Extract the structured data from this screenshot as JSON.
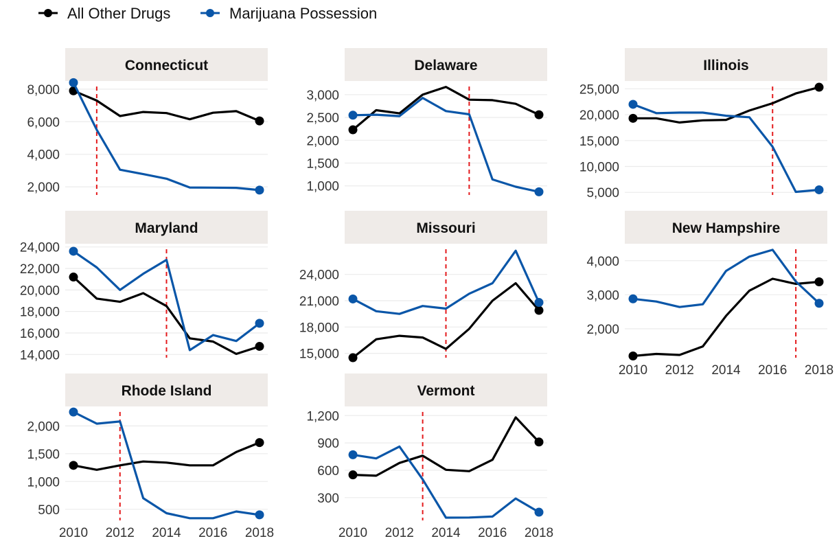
{
  "legend": [
    {
      "label": "All Other Drugs",
      "color": "#000000"
    },
    {
      "label": "Marijuana Possession",
      "color": "#0a56a8"
    }
  ],
  "chart_data": {
    "type": "line",
    "x_ticks": [
      2010,
      2012,
      2014,
      2016,
      2018
    ],
    "years": [
      2010,
      2011,
      2012,
      2013,
      2014,
      2015,
      2016,
      2017,
      2018
    ],
    "legend_position": "top-left",
    "grid": true,
    "panels": [
      {
        "title": "Connecticut",
        "ylim": [
          1500,
          8500
        ],
        "yticks": [
          2000,
          4000,
          6000,
          8000
        ],
        "tick_labels": [
          "2,000",
          "4,000",
          "6,000",
          "8,000"
        ],
        "policy_year": 2011,
        "show_x_axis": false,
        "series": [
          {
            "name": "All Other Drugs",
            "values": [
              7900,
              7300,
              6350,
              6600,
              6530,
              6150,
              6550,
              6650,
              6050
            ]
          },
          {
            "name": "Marijuana Possession",
            "values": [
              8400,
              5500,
              3050,
              2780,
              2500,
              1960,
              1950,
              1940,
              1800
            ]
          }
        ]
      },
      {
        "title": "Delaware",
        "ylim": [
          800,
          3300
        ],
        "yticks": [
          1000,
          1500,
          2000,
          2500,
          3000
        ],
        "tick_labels": [
          "1,000",
          "1,500",
          "2,000",
          "2,500",
          "3,000"
        ],
        "policy_year": 2015,
        "show_x_axis": false,
        "series": [
          {
            "name": "All Other Drugs",
            "values": [
              2230,
              2660,
              2590,
              3000,
              3170,
              2890,
              2880,
              2800,
              2560
            ]
          },
          {
            "name": "Marijuana Possession",
            "values": [
              2550,
              2560,
              2530,
              2930,
              2640,
              2570,
              1140,
              980,
              870
            ]
          }
        ]
      },
      {
        "title": "Illinois",
        "ylim": [
          4500,
          26500
        ],
        "yticks": [
          5000,
          10000,
          15000,
          20000,
          25000
        ],
        "tick_labels": [
          "5,000",
          "10,000",
          "15,000",
          "20,000",
          "25,000"
        ],
        "policy_year": 2016,
        "show_x_axis": false,
        "series": [
          {
            "name": "All Other Drugs",
            "values": [
              19300,
              19300,
              18500,
              18900,
              19000,
              20800,
              22200,
              24100,
              25300
            ]
          },
          {
            "name": "Marijuana Possession",
            "values": [
              22000,
              20300,
              20400,
              20400,
              19800,
              19500,
              13800,
              5100,
              5500
            ]
          }
        ]
      },
      {
        "title": "Maryland",
        "ylim": [
          13700,
          24300
        ],
        "yticks": [
          14000,
          16000,
          18000,
          20000,
          22000,
          24000
        ],
        "tick_labels": [
          "14,000",
          "16,000",
          "18,000",
          "20,000",
          "22,000",
          "24,000"
        ],
        "policy_year": 2014,
        "show_x_axis": false,
        "series": [
          {
            "name": "All Other Drugs",
            "values": [
              21200,
              19200,
              18900,
              19700,
              18500,
              15500,
              15200,
              14050,
              14750
            ]
          },
          {
            "name": "Marijuana Possession",
            "values": [
              23600,
              22100,
              20000,
              21500,
              22800,
              14400,
              15800,
              15250,
              16900
            ]
          }
        ]
      },
      {
        "title": "Missouri",
        "ylim": [
          14500,
          27500
        ],
        "yticks": [
          15000,
          18000,
          21000,
          24000
        ],
        "tick_labels": [
          "15,000",
          "18,000",
          "21,000",
          "24,000"
        ],
        "policy_year": 2014,
        "show_x_axis": false,
        "series": [
          {
            "name": "All Other Drugs",
            "values": [
              14500,
              16600,
              17000,
              16800,
              15500,
              17800,
              21000,
              23000,
              19900
            ]
          },
          {
            "name": "Marijuana Possession",
            "values": [
              21200,
              19800,
              19500,
              20400,
              20100,
              21800,
              23000,
              26700,
              20800
            ]
          }
        ]
      },
      {
        "title": "New Hampshire",
        "ylim": [
          1150,
          4500
        ],
        "yticks": [
          2000,
          3000,
          4000
        ],
        "tick_labels": [
          "2,000",
          "3,000",
          "4,000"
        ],
        "policy_year": 2017,
        "show_x_axis": true,
        "series": [
          {
            "name": "All Other Drugs",
            "values": [
              1200,
              1260,
              1230,
              1480,
              2380,
              3120,
              3470,
              3320,
              3380
            ]
          },
          {
            "name": "Marijuana Possession",
            "values": [
              2880,
              2800,
              2640,
              2720,
              3700,
              4120,
              4320,
              3390,
              2750
            ]
          }
        ]
      },
      {
        "title": "Rhode Island",
        "ylim": [
          300,
          2350
        ],
        "yticks": [
          500,
          1000,
          1500,
          2000
        ],
        "tick_labels": [
          "500",
          "1,000",
          "1,500",
          "2,000"
        ],
        "policy_year": 2012,
        "show_x_axis": true,
        "series": [
          {
            "name": "All Other Drugs",
            "values": [
              1290,
              1210,
              1290,
              1360,
              1340,
              1290,
              1290,
              1530,
              1700
            ]
          },
          {
            "name": "Marijuana Possession",
            "values": [
              2250,
              2040,
              2080,
              700,
              430,
              340,
              340,
              460,
              400
            ]
          }
        ]
      },
      {
        "title": "Vermont",
        "ylim": [
          50,
          1300
        ],
        "yticks": [
          300,
          600,
          900,
          1200
        ],
        "tick_labels": [
          "300",
          "600",
          "900",
          "1,200"
        ],
        "policy_year": 2013,
        "show_x_axis": true,
        "series": [
          {
            "name": "All Other Drugs",
            "values": [
              550,
              540,
              680,
              760,
              605,
              590,
              715,
              1180,
              910
            ]
          },
          {
            "name": "Marijuana Possession",
            "values": [
              770,
              730,
              860,
              500,
              80,
              82,
              92,
              290,
              140
            ]
          }
        ]
      }
    ]
  }
}
